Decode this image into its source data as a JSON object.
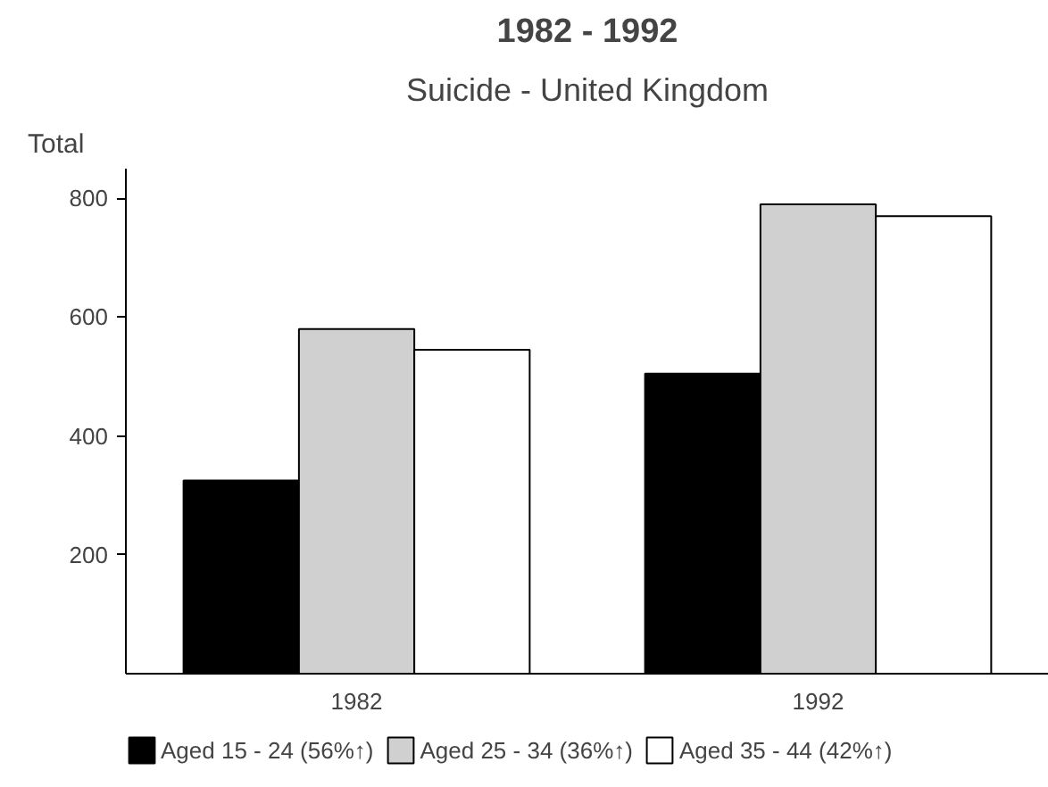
{
  "chart_data": {
    "type": "bar",
    "title": "1982 - 1992",
    "subtitle": "Suicide - United Kingdom",
    "ylabel": "Total",
    "categories": [
      "1982",
      "1992"
    ],
    "series": [
      {
        "name": "Aged 15 - 24 (56%↑)",
        "color": "#000000",
        "values": [
          325,
          505
        ]
      },
      {
        "name": "Aged 25 - 34 (36%↑)",
        "color": "#d0d0d0",
        "values": [
          580,
          790
        ]
      },
      {
        "name": "Aged 35 - 44 (42%↑)",
        "color": "#ffffff",
        "values": [
          545,
          770
        ]
      }
    ],
    "ylim": [
      0,
      850
    ],
    "yticks": [
      200,
      400,
      600,
      800
    ],
    "grid": false,
    "legend": "bottom"
  }
}
